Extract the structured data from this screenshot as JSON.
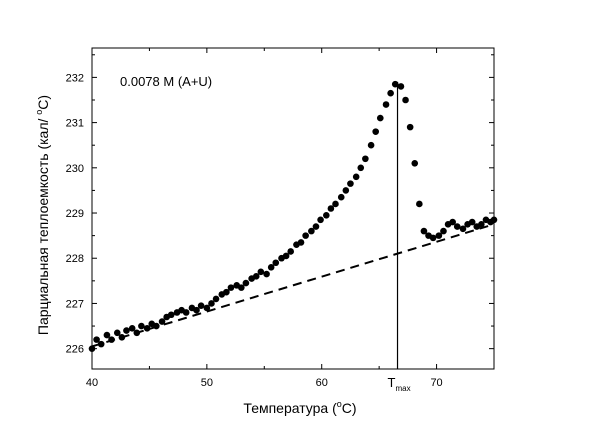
{
  "chart_data": {
    "type": "scatter",
    "annotation": "0.0078 M (A+U)",
    "xlabel": {
      "main": "Температура (",
      "sup": "o",
      "tail": "C)"
    },
    "ylabel": {
      "main": "Парциальная теплоемкость (кал/ ",
      "sup": "o",
      "tail": "C)"
    },
    "xlim": [
      40,
      75
    ],
    "ylim": [
      225.55,
      232.65
    ],
    "x_ticks": [
      40,
      50,
      60,
      70
    ],
    "y_ticks": [
      226,
      227,
      228,
      229,
      230,
      231,
      232
    ],
    "tmax": {
      "x": 66.6,
      "label_main": "T",
      "label_sub": "max"
    },
    "baseline": {
      "style": "dashed",
      "x": [
        40,
        75
      ],
      "y": [
        226.05,
        228.75
      ]
    },
    "series": [
      {
        "marker": "filled-circle",
        "x": [
          40.0,
          40.4,
          40.8,
          41.3,
          41.7,
          42.2,
          42.6,
          43.0,
          43.5,
          43.9,
          44.3,
          44.8,
          45.2,
          45.6,
          46.1,
          46.5,
          46.9,
          47.4,
          47.8,
          48.2,
          48.7,
          49.1,
          49.5,
          50.0,
          50.4,
          50.8,
          51.3,
          51.7,
          52.1,
          52.6,
          53.0,
          53.4,
          53.9,
          54.3,
          54.7,
          55.2,
          55.6,
          56.0,
          56.5,
          56.9,
          57.3,
          57.8,
          58.2,
          58.6,
          59.1,
          59.5,
          59.9,
          60.4,
          60.8,
          61.2,
          61.7,
          62.1,
          62.5,
          63.0,
          63.4,
          63.8,
          64.3,
          64.7,
          65.1,
          65.6,
          66.0,
          66.4,
          66.9,
          67.3,
          67.7,
          68.1,
          68.5,
          68.9,
          69.3,
          69.7,
          70.2,
          70.6,
          71.0,
          71.4,
          71.8,
          72.3,
          72.7,
          73.1,
          73.5,
          73.9,
          74.3,
          74.7,
          75.0
        ],
        "y": [
          226.0,
          226.2,
          226.1,
          226.3,
          226.2,
          226.35,
          226.25,
          226.4,
          226.45,
          226.35,
          226.5,
          226.45,
          226.55,
          226.5,
          226.6,
          226.7,
          226.75,
          226.8,
          226.85,
          226.8,
          226.9,
          226.85,
          226.95,
          226.9,
          227.0,
          227.1,
          227.2,
          227.25,
          227.35,
          227.4,
          227.35,
          227.45,
          227.55,
          227.6,
          227.7,
          227.65,
          227.8,
          227.9,
          228.0,
          228.05,
          228.15,
          228.3,
          228.35,
          228.5,
          228.6,
          228.7,
          228.85,
          228.95,
          229.1,
          229.2,
          229.35,
          229.5,
          229.65,
          229.8,
          230.0,
          230.2,
          230.5,
          230.8,
          231.1,
          231.4,
          231.65,
          231.85,
          231.8,
          231.5,
          230.9,
          230.1,
          229.2,
          228.6,
          228.5,
          228.45,
          228.5,
          228.6,
          228.75,
          228.8,
          228.7,
          228.65,
          228.75,
          228.8,
          228.7,
          228.75,
          228.85,
          228.8,
          228.85
        ]
      }
    ]
  }
}
